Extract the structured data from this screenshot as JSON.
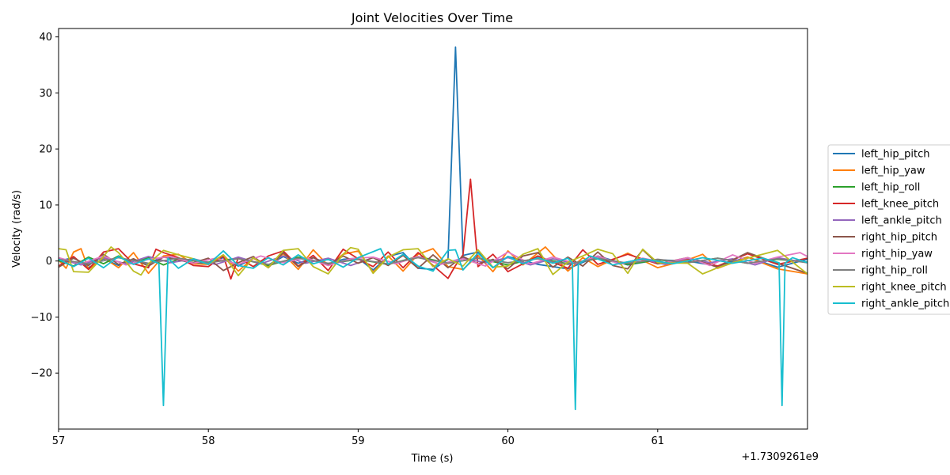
{
  "chart_data": {
    "type": "line",
    "title": "Joint Velocities Over Time",
    "xlabel": "Time (s)",
    "ylabel": "Velocity (rad/s)",
    "x_offset_label": "+1.7309261e9",
    "xlim": [
      57,
      62.0
    ],
    "ylim": [
      -30,
      41.5
    ],
    "xticks": [
      57,
      58,
      59,
      60,
      61
    ],
    "xtick_labels": [
      "57",
      "58",
      "59",
      "60",
      "61"
    ],
    "yticks": [
      -20,
      -10,
      0,
      10,
      20,
      30,
      40
    ],
    "ytick_labels": [
      "−20",
      "−10",
      "0",
      "10",
      "20",
      "30",
      "40"
    ],
    "grid": false,
    "legend_position": "right",
    "legend_entries": [
      "left_hip_pitch",
      "left_hip_yaw",
      "left_hip_roll",
      "left_knee_pitch",
      "left_ankle_pitch",
      "right_hip_pitch",
      "right_hip_yaw",
      "right_hip_roll",
      "right_knee_pitch",
      "right_ankle_pitch"
    ],
    "series": [
      {
        "name": "left_hip_pitch",
        "color": "#1f77b4",
        "x": [
          57.0,
          57.1,
          57.2,
          57.3,
          57.4,
          57.5,
          57.6,
          57.7,
          57.8,
          57.9,
          58.0,
          58.1,
          58.2,
          58.3,
          58.4,
          58.5,
          58.6,
          58.7,
          58.8,
          58.9,
          59.0,
          59.1,
          59.2,
          59.3,
          59.4,
          59.5,
          59.6,
          59.65,
          59.7,
          59.8,
          59.9,
          60.0,
          60.2,
          60.4,
          60.6,
          60.8,
          61.0,
          61.2,
          61.4,
          61.6,
          61.8,
          62.0
        ],
        "y": [
          0.0,
          0.6,
          -1.2,
          0.4,
          -0.8,
          0.3,
          -0.5,
          0.8,
          0.2,
          -0.4,
          -0.3,
          0.6,
          -0.9,
          0.5,
          -0.7,
          0.8,
          -0.4,
          0.6,
          -0.5,
          0.3,
          0.5,
          -1.6,
          0.8,
          1.5,
          -1.3,
          -1.5,
          0.3,
          38.2,
          1.0,
          1.6,
          -1.2,
          0.8,
          -0.6,
          -1.4,
          0.9,
          -0.7,
          0.2,
          0.0,
          -0.9,
          0.7,
          -1.1,
          0.3
        ]
      },
      {
        "name": "left_hip_yaw",
        "color": "#ff7f0e",
        "x": [
          57.0,
          57.05,
          57.1,
          57.15,
          57.2,
          57.3,
          57.4,
          57.5,
          57.6,
          57.7,
          57.8,
          57.9,
          58.0,
          58.1,
          58.2,
          58.3,
          58.4,
          58.5,
          58.6,
          58.7,
          58.8,
          58.9,
          59.0,
          59.1,
          59.2,
          59.3,
          59.4,
          59.5,
          59.6,
          59.7,
          59.8,
          59.9,
          60.0,
          60.1,
          60.25,
          60.4,
          60.5,
          60.6,
          60.8,
          61.0,
          61.2,
          61.3,
          61.4,
          61.6,
          61.8,
          62.0
        ],
        "y": [
          0.2,
          -1.3,
          1.6,
          2.2,
          -1.5,
          0.6,
          -1.2,
          1.5,
          -2.2,
          0.9,
          1.2,
          -0.5,
          -0.6,
          1.1,
          -1.8,
          0.5,
          -1.1,
          1.3,
          -1.5,
          2.0,
          -0.8,
          1.2,
          1.8,
          -2.0,
          0.9,
          -1.8,
          1.2,
          2.2,
          -1.0,
          -1.5,
          1.0,
          -1.9,
          1.8,
          -0.7,
          2.5,
          -1.8,
          0.6,
          -1.0,
          1.4,
          -1.2,
          0.2,
          1.2,
          -1.3,
          0.7,
          -1.4,
          -2.3
        ]
      },
      {
        "name": "left_hip_roll",
        "color": "#2ca02c",
        "x": [
          57.0,
          57.1,
          57.2,
          57.3,
          57.4,
          57.5,
          57.6,
          57.7,
          57.8,
          58.0,
          58.2,
          58.4,
          58.6,
          58.8,
          59.0,
          59.2,
          59.4,
          59.6,
          59.8,
          60.0,
          60.2,
          60.4,
          60.6,
          60.8,
          61.0,
          61.2,
          61.4,
          61.6,
          61.8,
          62.0
        ],
        "y": [
          0.1,
          -0.9,
          0.7,
          -0.5,
          0.9,
          -0.4,
          0.6,
          -0.7,
          0.3,
          -0.2,
          0.5,
          -0.8,
          0.7,
          -0.5,
          0.3,
          -0.6,
          0.8,
          -0.4,
          0.5,
          -0.7,
          0.6,
          -0.5,
          0.4,
          -0.6,
          0.2,
          -0.3,
          0.5,
          -0.4,
          0.3,
          -0.2
        ]
      },
      {
        "name": "left_knee_pitch",
        "color": "#d62728",
        "x": [
          57.0,
          57.1,
          57.2,
          57.3,
          57.4,
          57.5,
          57.6,
          57.65,
          57.7,
          57.8,
          57.9,
          58.0,
          58.1,
          58.15,
          58.2,
          58.3,
          58.4,
          58.5,
          58.6,
          58.7,
          58.8,
          58.9,
          59.0,
          59.1,
          59.2,
          59.3,
          59.4,
          59.5,
          59.6,
          59.65,
          59.7,
          59.75,
          59.8,
          59.9,
          60.0,
          60.2,
          60.4,
          60.5,
          60.6,
          60.8,
          61.0,
          61.2,
          61.4,
          61.6,
          61.8,
          62.0
        ],
        "y": [
          -0.9,
          0.8,
          -1.5,
          1.6,
          2.2,
          -0.5,
          -1.2,
          2.1,
          1.5,
          0.6,
          -0.8,
          -1.0,
          0.9,
          -3.2,
          0.6,
          -1.0,
          0.9,
          1.8,
          -0.9,
          1.0,
          -1.7,
          2.1,
          0.4,
          -1.0,
          1.6,
          -1.2,
          1.5,
          -0.8,
          -3.1,
          -0.8,
          1.1,
          14.6,
          -1.0,
          1.2,
          -1.9,
          0.9,
          -1.3,
          2.0,
          -0.6,
          1.2,
          -0.5,
          0.4,
          -0.9,
          1.3,
          -0.6,
          0.5
        ]
      },
      {
        "name": "left_ankle_pitch",
        "color": "#9467bd",
        "x": [
          57.0,
          57.15,
          57.3,
          57.45,
          57.6,
          57.75,
          57.9,
          58.05,
          58.2,
          58.35,
          58.5,
          58.65,
          58.8,
          58.95,
          59.1,
          59.25,
          59.4,
          59.55,
          59.7,
          59.85,
          60.0,
          60.15,
          60.3,
          60.45,
          60.6,
          60.75,
          60.9,
          61.05,
          61.2,
          61.35,
          61.5,
          61.65,
          61.8,
          62.0
        ],
        "y": [
          0.4,
          -0.7,
          0.6,
          -0.5,
          0.8,
          -0.3,
          0.4,
          -0.6,
          0.7,
          -0.5,
          0.9,
          -0.4,
          0.5,
          -0.8,
          0.6,
          -0.4,
          0.7,
          -0.6,
          0.5,
          -0.3,
          0.6,
          -0.7,
          0.4,
          -0.5,
          0.8,
          -0.4,
          0.3,
          -0.6,
          0.5,
          -0.3,
          0.4,
          -0.7,
          0.6,
          -0.3
        ]
      },
      {
        "name": "right_hip_pitch",
        "color": "#8c564b",
        "x": [
          57.0,
          57.1,
          57.2,
          57.3,
          57.4,
          57.5,
          57.6,
          57.7,
          57.8,
          57.9,
          58.0,
          58.1,
          58.2,
          58.3,
          58.4,
          58.5,
          58.6,
          58.7,
          58.8,
          58.9,
          59.0,
          59.1,
          59.2,
          59.3,
          59.4,
          59.5,
          59.6,
          59.7,
          59.8,
          59.9,
          60.0,
          60.1,
          60.2,
          60.3,
          60.4,
          60.5,
          60.6,
          60.7,
          60.8,
          60.9,
          61.0,
          61.2,
          61.4,
          61.6,
          61.8,
          62.0
        ],
        "y": [
          -1.1,
          0.5,
          -0.8,
          1.2,
          -0.6,
          0.4,
          -0.9,
          0.7,
          0.2,
          -0.3,
          0.5,
          -1.7,
          -0.3,
          0.8,
          -1.2,
          1.5,
          -1.0,
          0.6,
          -0.7,
          0.9,
          -0.4,
          0.6,
          -0.8,
          1.0,
          -1.3,
          1.1,
          -1.2,
          0.8,
          -0.5,
          0.3,
          -1.4,
          0.9,
          1.5,
          -1.1,
          0.7,
          -0.9,
          1.6,
          -0.8,
          -1.4,
          2.0,
          -0.5,
          0.6,
          -1.1,
          1.5,
          -0.4,
          -2.2
        ]
      },
      {
        "name": "right_hip_yaw",
        "color": "#e377c2",
        "x": [
          57.0,
          57.15,
          57.3,
          57.45,
          57.6,
          57.75,
          57.9,
          58.05,
          58.2,
          58.35,
          58.5,
          58.65,
          58.8,
          58.95,
          59.1,
          59.25,
          59.4,
          59.55,
          59.7,
          59.85,
          60.0,
          60.15,
          60.3,
          60.45,
          60.6,
          60.75,
          60.9,
          61.05,
          61.2,
          61.35,
          61.5,
          61.65,
          61.8,
          61.95,
          62.0
        ],
        "y": [
          0.6,
          -0.5,
          0.9,
          -0.7,
          0.3,
          0.8,
          -0.4,
          0.5,
          -0.6,
          0.9,
          -0.3,
          0.6,
          -0.8,
          0.4,
          0.7,
          -0.5,
          0.8,
          -0.6,
          0.4,
          -0.9,
          1.6,
          -0.5,
          0.7,
          -0.4,
          0.9,
          -0.6,
          0.5,
          -0.3,
          0.6,
          -0.8,
          1.1,
          -0.4,
          0.7,
          1.5,
          0.8
        ]
      },
      {
        "name": "right_hip_roll",
        "color": "#7f7f7f",
        "x": [
          57.0,
          57.2,
          57.4,
          57.6,
          57.8,
          58.0,
          58.2,
          58.4,
          58.6,
          58.8,
          59.0,
          59.2,
          59.4,
          59.6,
          59.8,
          60.0,
          60.2,
          60.4,
          60.6,
          60.8,
          61.0,
          61.2,
          61.4,
          61.6,
          61.8,
          62.0
        ],
        "y": [
          0.3,
          -0.5,
          0.6,
          -0.4,
          0.5,
          -0.3,
          0.4,
          -0.6,
          0.5,
          -0.4,
          0.3,
          -0.5,
          0.6,
          -0.4,
          0.5,
          -0.3,
          0.4,
          -0.6,
          0.5,
          -0.4,
          0.3,
          -0.3,
          0.5,
          -0.4,
          0.4,
          -0.3
        ]
      },
      {
        "name": "right_knee_pitch",
        "color": "#bcbd22",
        "x": [
          57.0,
          57.05,
          57.1,
          57.2,
          57.3,
          57.35,
          57.4,
          57.5,
          57.55,
          57.6,
          57.7,
          57.8,
          57.9,
          58.0,
          58.1,
          58.2,
          58.3,
          58.4,
          58.5,
          58.6,
          58.7,
          58.8,
          58.9,
          58.95,
          59.0,
          59.1,
          59.2,
          59.3,
          59.4,
          59.5,
          59.6,
          59.7,
          59.8,
          59.9,
          60.0,
          60.1,
          60.2,
          60.3,
          60.4,
          60.5,
          60.6,
          60.7,
          60.8,
          60.9,
          61.0,
          61.2,
          61.3,
          61.4,
          61.6,
          61.8,
          62.0
        ],
        "y": [
          2.2,
          2.0,
          -1.9,
          -2.0,
          0.8,
          2.5,
          1.5,
          -1.8,
          -2.5,
          -0.5,
          1.9,
          1.1,
          0.4,
          -0.6,
          1.1,
          -2.6,
          0.6,
          -1.2,
          1.9,
          2.2,
          -1.0,
          -2.3,
          1.2,
          2.4,
          2.1,
          -2.2,
          0.7,
          2.0,
          2.2,
          -1.0,
          0.4,
          -0.9,
          2.0,
          -1.1,
          -0.9,
          1.2,
          2.2,
          -2.4,
          -0.2,
          0.9,
          2.1,
          1.3,
          -2.2,
          2.1,
          -0.3,
          -0.4,
          -2.3,
          -1.2,
          0.5,
          1.9,
          -2.3
        ]
      },
      {
        "name": "right_ankle_pitch",
        "color": "#17becf",
        "x": [
          57.0,
          57.1,
          57.2,
          57.3,
          57.4,
          57.5,
          57.6,
          57.67,
          57.7,
          57.73,
          57.8,
          57.9,
          58.0,
          58.1,
          58.2,
          58.3,
          58.4,
          58.5,
          58.6,
          58.7,
          58.8,
          58.9,
          59.0,
          59.15,
          59.2,
          59.3,
          59.4,
          59.5,
          59.6,
          59.65,
          59.7,
          59.8,
          59.9,
          60.0,
          60.1,
          60.2,
          60.3,
          60.4,
          60.43,
          60.45,
          60.47,
          60.55,
          60.7,
          60.9,
          61.1,
          61.3,
          61.5,
          61.7,
          61.81,
          61.83,
          61.85,
          61.9,
          62.0
        ],
        "y": [
          0.3,
          -1.0,
          0.5,
          -1.2,
          0.8,
          -0.6,
          0.4,
          -0.5,
          -25.8,
          0.5,
          -1.3,
          0.4,
          -0.6,
          1.8,
          -0.8,
          -1.3,
          0.6,
          -0.7,
          1.1,
          -0.5,
          0.3,
          -1.1,
          0.6,
          2.2,
          -0.6,
          1.2,
          -0.9,
          -1.8,
          1.9,
          2.0,
          -1.6,
          1.4,
          -1.2,
          0.8,
          -0.5,
          0.6,
          -0.4,
          0.5,
          -0.3,
          -26.5,
          -0.6,
          0.9,
          -0.7,
          0.4,
          -0.5,
          0.6,
          -0.4,
          0.5,
          -0.3,
          -25.8,
          -0.4,
          0.6,
          -0.3
        ]
      }
    ]
  }
}
